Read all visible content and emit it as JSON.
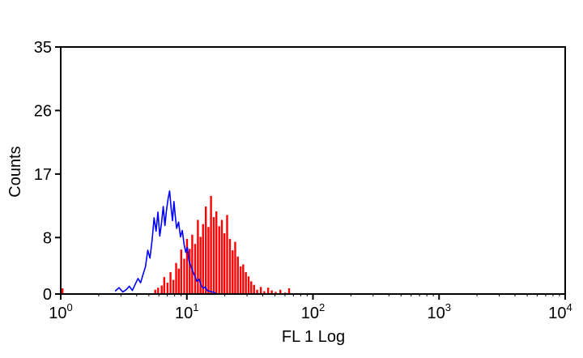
{
  "chart_data": {
    "type": "area",
    "title": "",
    "xlabel": "FL 1 Log",
    "ylabel": "Counts",
    "x_scale": "log",
    "xlim": [
      1,
      10000
    ],
    "ylim": [
      0,
      35
    ],
    "y_ticks": [
      "0",
      "8",
      "17",
      "26",
      "35"
    ],
    "x_ticks": [
      {
        "base": "10",
        "exp": "0"
      },
      {
        "base": "10",
        "exp": "1"
      },
      {
        "base": "10",
        "exp": "2"
      },
      {
        "base": "10",
        "exp": "3"
      },
      {
        "base": "10",
        "exp": "4"
      }
    ],
    "grid": false,
    "series": [
      {
        "style": "filled",
        "color": "#ff0000",
        "x": [
          1.0,
          1.03,
          5.6,
          5.9,
          6.3,
          6.6,
          7.0,
          7.4,
          7.8,
          8.2,
          8.6,
          9.0,
          9.5,
          10.0,
          10.5,
          11.0,
          11.6,
          12.2,
          12.8,
          13.4,
          14.1,
          14.8,
          15.5,
          16.3,
          17.1,
          18.0,
          18.9,
          19.8,
          20.8,
          21.9,
          23.0,
          24.1,
          25.3,
          26.6,
          27.9,
          29.3,
          30.8,
          32.3,
          34.0,
          36.0,
          38.5,
          41.0,
          44.0,
          47.0,
          50.5,
          55.0,
          60.0,
          64.5,
          66.0
        ],
        "y": [
          0.5,
          0.8,
          0.6,
          0.9,
          1.2,
          2.4,
          1.6,
          3.1,
          2.0,
          4.4,
          3.6,
          6.3,
          5.0,
          7.8,
          6.4,
          8.4,
          7.1,
          10.5,
          8.1,
          9.9,
          12.4,
          9.5,
          13.9,
          10.9,
          11.7,
          9.6,
          10.5,
          8.6,
          11.2,
          7.8,
          6.2,
          7.4,
          5.3,
          3.9,
          4.2,
          3.1,
          2.5,
          1.8,
          1.3,
          0.6,
          1.0,
          0.4,
          0.9,
          0.5,
          0.3,
          0.6,
          0.2,
          0.8,
          0.0
        ]
      },
      {
        "style": "outline",
        "color": "#0000ff",
        "x": [
          2.7,
          2.9,
          3.1,
          3.3,
          3.5,
          3.7,
          3.9,
          4.1,
          4.3,
          4.5,
          4.7,
          4.9,
          5.1,
          5.3,
          5.5,
          5.7,
          5.9,
          6.1,
          6.3,
          6.5,
          6.7,
          6.9,
          7.1,
          7.3,
          7.5,
          7.7,
          7.9,
          8.1,
          8.3,
          8.6,
          8.9,
          9.2,
          9.5,
          9.8,
          10.1,
          10.4,
          10.8,
          11.2,
          11.6,
          12.0,
          12.5,
          13.0,
          13.5,
          14.0,
          14.5,
          15.0,
          16.0,
          17.0
        ],
        "y": [
          0.4,
          0.9,
          0.3,
          0.6,
          1.1,
          0.5,
          1.4,
          2.2,
          1.6,
          2.8,
          3.9,
          6.2,
          5.1,
          7.6,
          10.8,
          8.9,
          11.6,
          8.2,
          10.1,
          12.4,
          9.7,
          11.9,
          13.5,
          14.6,
          12.2,
          10.4,
          13.1,
          11.0,
          9.3,
          10.2,
          8.1,
          9.0,
          7.1,
          5.9,
          6.6,
          4.7,
          3.9,
          3.1,
          2.5,
          1.8,
          2.1,
          1.2,
          0.8,
          1.0,
          0.5,
          0.4,
          0.3,
          0.1
        ]
      }
    ]
  }
}
